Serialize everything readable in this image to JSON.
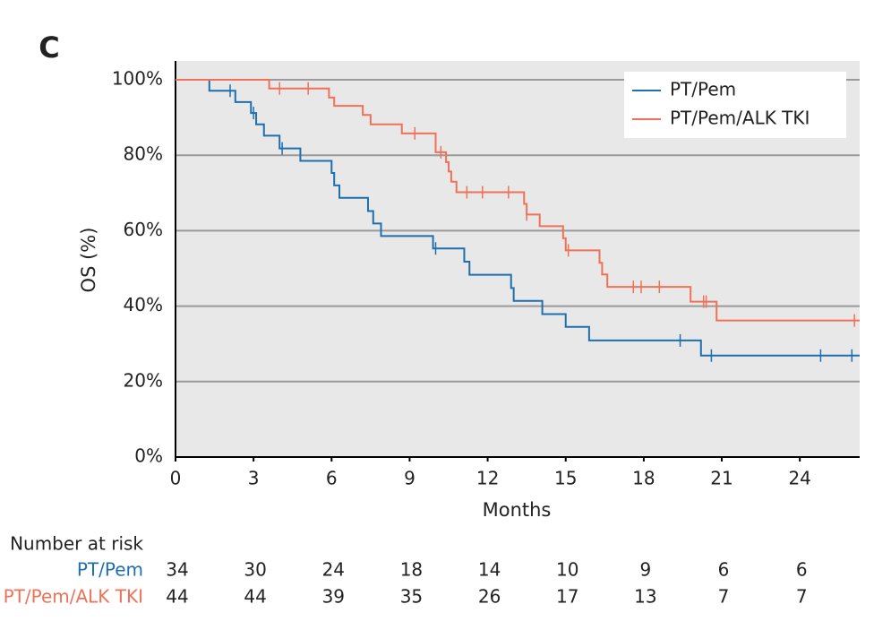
{
  "chart_data": {
    "type": "step",
    "panel_label": "C",
    "x_label": "Months",
    "y_label": "OS (%)",
    "xlim": [
      0,
      26.3
    ],
    "ylim": [
      0,
      105
    ],
    "xticks": [
      0,
      3,
      6,
      9,
      12,
      15,
      18,
      21,
      24
    ],
    "yticks": [
      {
        "value": 0,
        "label": "0%"
      },
      {
        "value": 20,
        "label": "20%"
      },
      {
        "value": 40,
        "label": "40%"
      },
      {
        "value": 60,
        "label": "60%"
      },
      {
        "value": 80,
        "label": "80%"
      },
      {
        "value": 100,
        "label": "100%"
      }
    ],
    "grid": true,
    "legend": "upper right",
    "series": [
      {
        "name": "PT/Pem",
        "color": "#1f6fae",
        "x": [
          0,
          1.3,
          2.3,
          2.9,
          3.1,
          3.4,
          4.0,
          4.8,
          6.0,
          6.1,
          6.3,
          7.4,
          7.6,
          7.9,
          9.9,
          11.1,
          11.3,
          12.9,
          13.0,
          14.1,
          15.0,
          15.9,
          20.2,
          26.3
        ],
        "values": [
          100,
          97.1,
          94.1,
          91.2,
          88.2,
          85.2,
          81.8,
          78.5,
          75.3,
          72,
          68.7,
          65.2,
          61.9,
          58.6,
          55.3,
          51.8,
          48.3,
          44.8,
          41.4,
          37.9,
          34.5,
          30.9,
          26.9,
          26.9
        ],
        "censor_x": [
          2.1,
          3.0,
          4.1,
          10.0,
          19.4,
          20.6,
          24.8,
          26.0
        ],
        "censor_values": [
          97.1,
          91.2,
          81.8,
          55.3,
          30.9,
          26.9,
          26.9,
          26.9
        ]
      },
      {
        "name": "PT/Pem/ALK TKI",
        "color": "#f07157",
        "x": [
          0,
          3.6,
          5.9,
          6.1,
          7.2,
          7.5,
          8.7,
          10.0,
          10.4,
          10.5,
          10.6,
          10.8,
          13.4,
          13.5,
          14.0,
          14.9,
          15.0,
          16.3,
          16.4,
          16.6,
          19.8,
          20.8,
          26.3
        ],
        "values": [
          100,
          97.7,
          95.3,
          93.1,
          90.7,
          88.2,
          85.8,
          80.8,
          78.2,
          75.7,
          73,
          70.2,
          67.1,
          64.3,
          61.2,
          58,
          54.8,
          51.5,
          48.4,
          45.1,
          41.2,
          36.2,
          36.2
        ],
        "censor_x": [
          4.0,
          5.1,
          9.2,
          10.2,
          11.2,
          11.8,
          12.8,
          13.5,
          15.1,
          17.6,
          17.9,
          18.6,
          20.3,
          20.4,
          26.1
        ],
        "censor_values": [
          97.7,
          97.7,
          85.8,
          80.8,
          70.2,
          70.2,
          70.2,
          64.3,
          54.8,
          45.1,
          45.1,
          45.1,
          41.2,
          41.2,
          36.2
        ]
      }
    ],
    "risk_table": {
      "title": "Number at risk",
      "rows": [
        {
          "name": "PT/Pem",
          "color": "#1f6fae",
          "values": [
            34,
            30,
            24,
            18,
            14,
            10,
            9,
            6,
            6
          ]
        },
        {
          "name": "PT/Pem/ALK TKI",
          "color": "#f07157",
          "values": [
            44,
            44,
            39,
            35,
            26,
            17,
            13,
            7,
            7
          ]
        }
      ]
    }
  }
}
